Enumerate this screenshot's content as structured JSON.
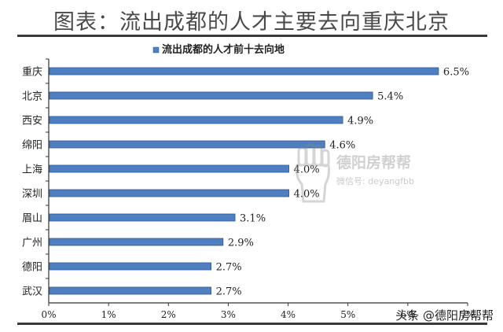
{
  "page": {
    "title": "图表：流出成都的人才主要去向重庆北京"
  },
  "watermark": {
    "title": "德阳房帮帮",
    "subtitle": "微信号: deyangfbb"
  },
  "brand": {
    "text": "头条 @德阳房帮帮"
  },
  "colors": {
    "bar": "#4f7fc1",
    "bar_edge": "#2c5a96",
    "legend": "#4f7fc1"
  },
  "chart_data": {
    "type": "bar",
    "orientation": "horizontal",
    "title": "",
    "xlabel": "",
    "ylabel": "",
    "legend": {
      "entries": [
        "流出成都的人才前十去向地"
      ],
      "position": "top"
    },
    "categories": [
      "重庆",
      "北京",
      "西安",
      "绵阳",
      "上海",
      "深圳",
      "眉山",
      "广州",
      "德阳",
      "武汉"
    ],
    "values": [
      6.5,
      5.4,
      4.9,
      4.6,
      4.0,
      4.0,
      3.1,
      2.9,
      2.7,
      2.7
    ],
    "data_labels": [
      "6.5%",
      "5.4%",
      "4.9%",
      "4.6%",
      "4.0%",
      "4.0%",
      "3.1%",
      "2.9%",
      "2.7%",
      "2.7%"
    ],
    "xlim": [
      0,
      7
    ],
    "xticks": [
      0,
      1,
      2,
      3,
      4,
      5,
      6,
      7
    ],
    "xtick_labels": [
      "0%",
      "1%",
      "2%",
      "3%",
      "4%",
      "5%",
      "6%",
      "7%"
    ],
    "grid": false
  }
}
